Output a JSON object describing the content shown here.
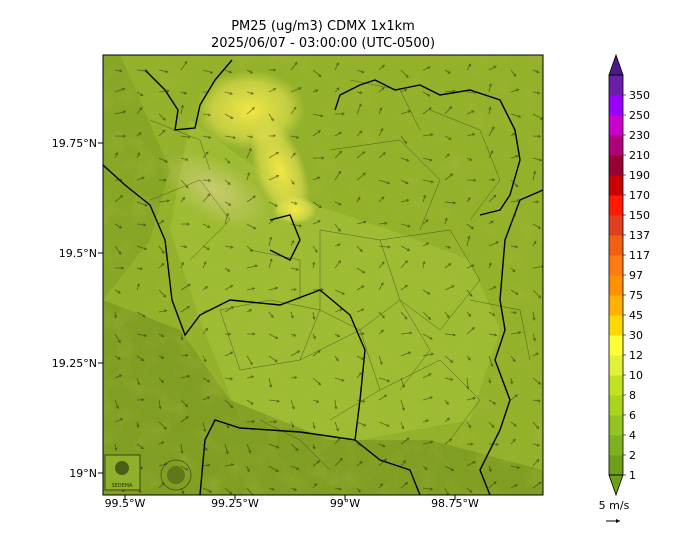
{
  "title": {
    "line1": "PM25 (ug/m3) CDMX 1x1km",
    "line2": "2025/06/07 - 03:00:00 (UTC-0500)"
  },
  "axes": {
    "y_ticks": [
      {
        "lat": 19.75,
        "label": "19.75°N"
      },
      {
        "lat": 19.5,
        "label": "19.5°N"
      },
      {
        "lat": 19.25,
        "label": "19.25°N"
      },
      {
        "lat": 19.0,
        "label": "19°N"
      }
    ],
    "x_ticks": [
      {
        "lon": -99.5,
        "label": "99.5°W"
      },
      {
        "lon": -99.25,
        "label": "99.25°W"
      },
      {
        "lon": -99.0,
        "label": "99°W"
      },
      {
        "lon": -98.75,
        "label": "98.75°W"
      }
    ],
    "lon_range": [
      -99.53,
      -98.53
    ],
    "lat_range": [
      18.95,
      19.95
    ]
  },
  "colorbar": {
    "levels": [
      "1",
      "2",
      "4",
      "6",
      "8",
      "10",
      "12",
      "30",
      "45",
      "75",
      "97",
      "117",
      "137",
      "150",
      "170",
      "190",
      "210",
      "230",
      "250",
      "350"
    ],
    "colors": [
      "#6f9e1a",
      "#7fb11f",
      "#93c41f",
      "#a9d61c",
      "#c0e31f",
      "#e1f03a",
      "#ffff38",
      "#ffd800",
      "#ffb000",
      "#ff9000",
      "#ff7a10",
      "#f06010",
      "#e04020",
      "#ff1a00",
      "#cc0000",
      "#990033",
      "#b0007a",
      "#cc00cc",
      "#9900ff",
      "#6a1fa8"
    ]
  },
  "wind_reference": {
    "label": "5 m/s"
  },
  "map": {
    "base_color": "#8fad2a",
    "hotspot_color": "#f0e040",
    "logo_text": "SEDEMA"
  }
}
